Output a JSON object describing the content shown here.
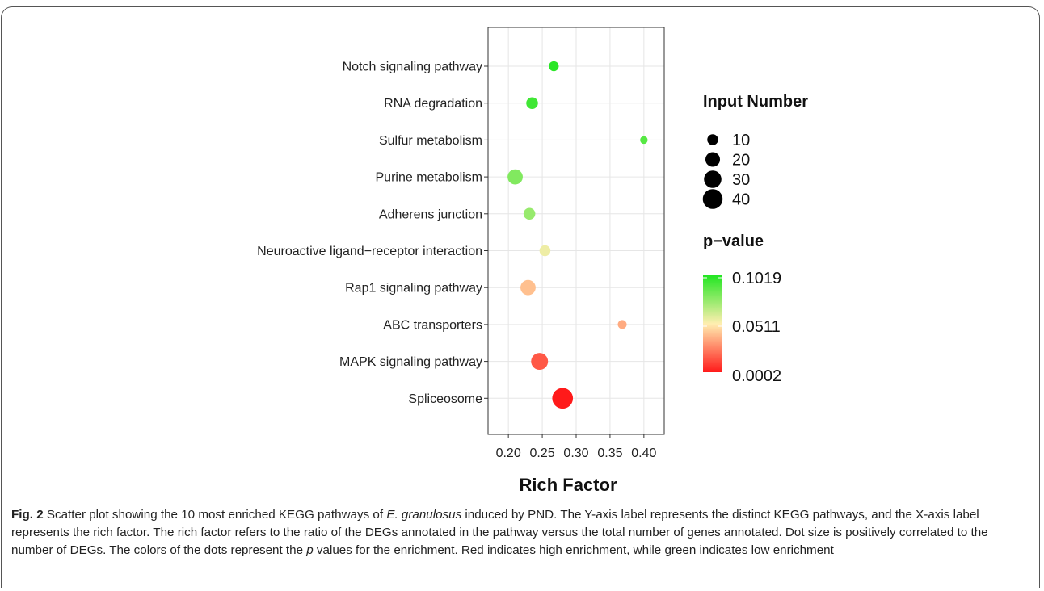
{
  "chart_data": {
    "type": "scatter",
    "xlabel": "Rich Factor",
    "ylabel": "",
    "xlim": [
      0.17,
      0.43
    ],
    "xticks": [
      "0.20",
      "0.25",
      "0.30",
      "0.35",
      "0.40"
    ],
    "grid": true,
    "categories": [
      "Notch signaling pathway",
      "RNA degradation",
      "Sulfur metabolism",
      "Purine metabolism",
      "Adherens junction",
      "Neuroactive ligand−receptor interaction",
      "Rap1 signaling pathway",
      "ABC transporters",
      "MAPK signaling pathway",
      "Spliceosome"
    ],
    "points": [
      {
        "pathway": "Notch signaling pathway",
        "rich_factor": 0.267,
        "input_number": 8,
        "p_value": 0.1
      },
      {
        "pathway": "RNA degradation",
        "rich_factor": 0.235,
        "input_number": 12,
        "p_value": 0.095
      },
      {
        "pathway": "Sulfur metabolism",
        "rich_factor": 0.4,
        "input_number": 4,
        "p_value": 0.09
      },
      {
        "pathway": "Purine metabolism",
        "rich_factor": 0.21,
        "input_number": 22,
        "p_value": 0.08
      },
      {
        "pathway": "Adherens junction",
        "rich_factor": 0.231,
        "input_number": 12,
        "p_value": 0.075
      },
      {
        "pathway": "Neuroactive ligand−receptor interaction",
        "rich_factor": 0.254,
        "input_number": 10,
        "p_value": 0.055
      },
      {
        "pathway": "Rap1 signaling pathway",
        "rich_factor": 0.229,
        "input_number": 22,
        "p_value": 0.04
      },
      {
        "pathway": "ABC transporters",
        "rich_factor": 0.368,
        "input_number": 6,
        "p_value": 0.035
      },
      {
        "pathway": "MAPK signaling pathway",
        "rich_factor": 0.246,
        "input_number": 28,
        "p_value": 0.015
      },
      {
        "pathway": "Spliceosome",
        "rich_factor": 0.28,
        "input_number": 44,
        "p_value": 0.0002
      }
    ],
    "size_legend": {
      "title": "Input Number",
      "values": [
        10,
        20,
        30,
        40
      ]
    },
    "color_legend": {
      "title": "p−value",
      "labels": [
        "0.1019",
        "0.0511",
        "0.0002"
      ],
      "range": [
        0.0002,
        0.1019
      ],
      "high_color": "#22e622",
      "mid_color": "#ffeeb0",
      "low_color": "#ff1a1a"
    }
  },
  "caption": {
    "fig": "Fig. 2",
    "t1": " Scatter plot showing the 10 most enriched KEGG pathways of ",
    "species": "E. granulosus",
    "t2": " induced by PND. The Y-axis label represents the distinct KEGG pathways, and the X-axis label represents the rich factor. The rich factor refers to the ratio of the DEGs annotated in the pathway versus the total number of genes annotated. Dot size is positively correlated to the number of DEGs. The colors of the dots represent the ",
    "p": "p",
    "t3": " values for the enrichment. Red indicates high enrichment, while green indicates low enrichment"
  }
}
